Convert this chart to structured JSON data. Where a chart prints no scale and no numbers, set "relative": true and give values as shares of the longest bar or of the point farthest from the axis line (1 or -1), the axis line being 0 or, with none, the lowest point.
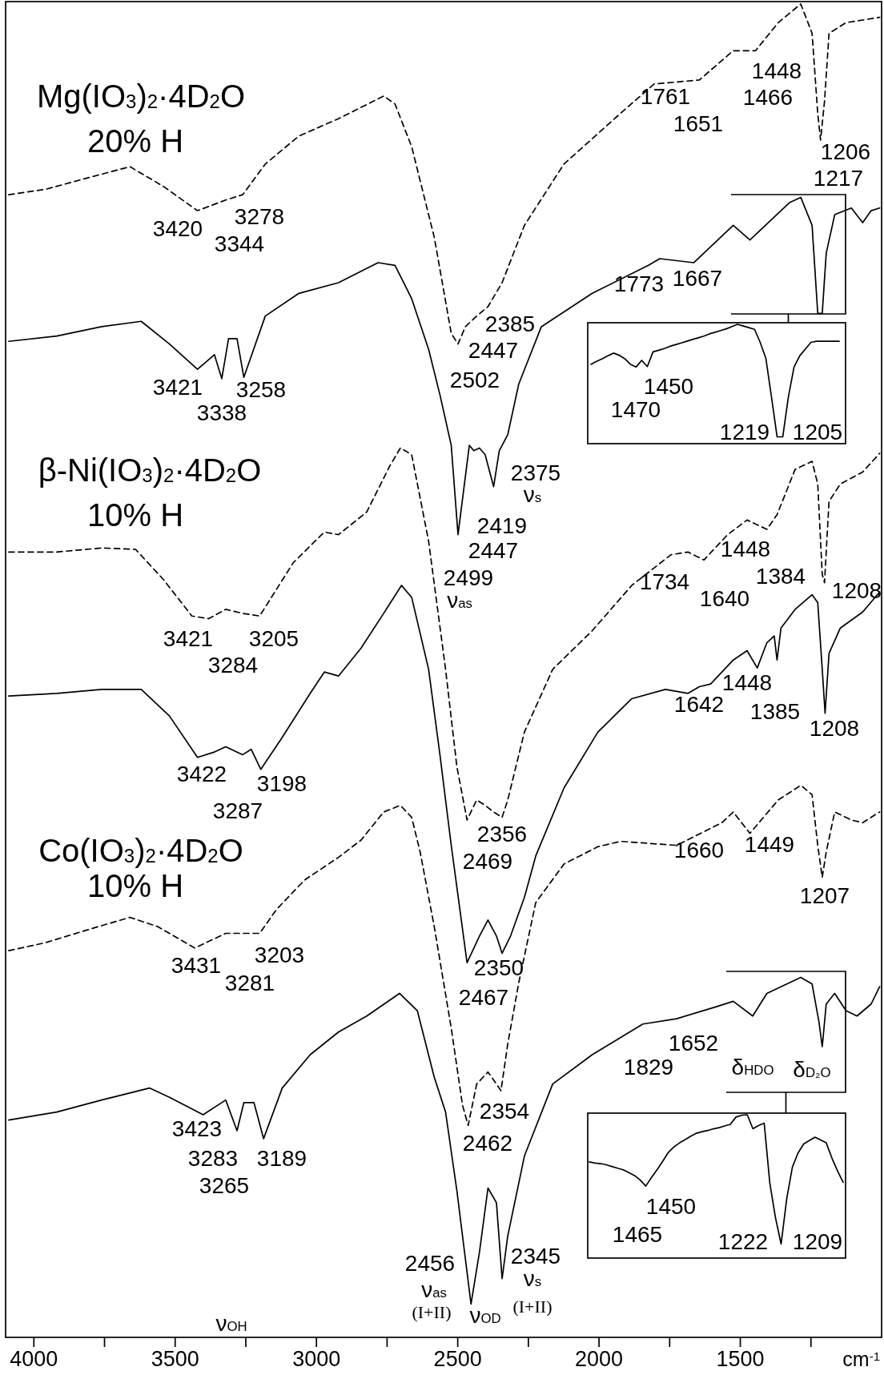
{
  "chart_data": [
    {
      "type": "line",
      "relative": true,
      "xlim": [
        4100,
        1000
      ],
      "xlabel": "cm$^{-1}$",
      "marker": "none",
      "xticks": [
        4000,
        {
          "value": 3750,
          "label": null
        },
        3500,
        {
          "value": 3250,
          "label": null
        },
        3000,
        {
          "value": 2750,
          "label": null
        },
        2500,
        {
          "value": 2250,
          "label": null
        },
        2000,
        {
          "value": 1750,
          "label": null
        },
        1500,
        {
          "value": 1250,
          "label": null
        }
      ],
      "series": [
        {
          "color": "#000000",
          "line_style": "dashed",
          "x": [
            4089,
            3959,
            3820,
            3660,
            3540,
            3421,
            3321,
            3261,
            3181,
            3062,
            2922,
            2762,
            2722,
            2663,
            2583,
            2523,
            2499,
            2473,
            2433,
            2393,
            2343,
            2264,
            2124,
            1924,
            1805,
            1645,
            1525,
            1446,
            1366,
            1286,
            1246,
            1226,
            1216,
            1202,
            1186,
            1126,
            1007
          ],
          "values": [
            0.857,
            0.861,
            0.869,
            0.878,
            0.863,
            0.845,
            0.853,
            0.857,
            0.88,
            0.901,
            0.914,
            0.931,
            0.925,
            0.893,
            0.825,
            0.753,
            0.745,
            0.758,
            0.766,
            0.773,
            0.791,
            0.834,
            0.88,
            0.918,
            0.94,
            0.943,
            0.965,
            0.965,
            0.986,
            1,
            0.978,
            0.918,
            0.898,
            0.927,
            0.978,
            0.986,
            0.99
          ]
        },
        {
          "color": "#000000",
          "line_style": "solid",
          "x": [
            4089,
            3919,
            3760,
            3620,
            3520,
            3421,
            3361,
            3335,
            3311,
            3281,
            3257,
            3181,
            3062,
            2922,
            2782,
            2722,
            2663,
            2603,
            2563,
            2523,
            2499,
            2459,
            2443,
            2423,
            2403,
            2373,
            2353,
            2323,
            2284,
            2204,
            2024,
            1825,
            1785,
            1665,
            1525,
            1466,
            1326,
            1286,
            1246,
            1226,
            1210,
            1196,
            1166,
            1107,
            1067,
            1037,
            1007
          ],
          "values": [
            0.747,
            0.751,
            0.758,
            0.762,
            0.745,
            0.726,
            0.737,
            0.719,
            0.749,
            0.749,
            0.72,
            0.766,
            0.783,
            0.791,
            0.806,
            0.804,
            0.779,
            0.741,
            0.707,
            0.669,
            0.602,
            0.669,
            0.665,
            0.667,
            0.662,
            0.638,
            0.665,
            0.677,
            0.715,
            0.758,
            0.783,
            0.804,
            0.809,
            0.806,
            0.834,
            0.823,
            0.851,
            0.855,
            0.834,
            0.768,
            0.768,
            0.813,
            0.842,
            0.847,
            0.836,
            0.845,
            0.847
          ]
        },
        {
          "color": "#000000",
          "line_style": "dashed",
          "x": [
            4089,
            3919,
            3760,
            3640,
            3540,
            3441,
            3381,
            3321,
            3261,
            3201,
            3082,
            2972,
            2922,
            2822,
            2742,
            2703,
            2663,
            2603,
            2543,
            2503,
            2467,
            2433,
            2403,
            2373,
            2343,
            2323,
            2264,
            2164,
            2024,
            1884,
            1745,
            1685,
            1629,
            1545,
            1476,
            1406,
            1370,
            1306,
            1246,
            1226,
            1210,
            1202,
            1186,
            1146,
            1067,
            1007
          ],
          "values": [
            0.589,
            0.589,
            0.592,
            0.591,
            0.568,
            0.541,
            0.539,
            0.546,
            0.543,
            0.541,
            0.581,
            0.604,
            0.602,
            0.619,
            0.653,
            0.667,
            0.662,
            0.597,
            0.501,
            0.428,
            0.388,
            0.403,
            0.399,
            0.394,
            0.39,
            0.403,
            0.454,
            0.501,
            0.53,
            0.564,
            0.587,
            0.589,
            0.583,
            0.602,
            0.613,
            0.606,
            0.617,
            0.651,
            0.657,
            0.64,
            0.572,
            0.566,
            0.627,
            0.64,
            0.649,
            0.663
          ]
        },
        {
          "color": "#000000",
          "line_style": "solid",
          "x": [
            4089,
            3919,
            3760,
            3620,
            3520,
            3421,
            3361,
            3321,
            3261,
            3231,
            3197,
            3121,
            3022,
            2972,
            2922,
            2842,
            2762,
            2699,
            2663,
            2603,
            2563,
            2523,
            2467,
            2423,
            2393,
            2363,
            2343,
            2313,
            2264,
            2224,
            2124,
            2004,
            1884,
            1765,
            1685,
            1645,
            1605,
            1525,
            1476,
            1440,
            1406,
            1380,
            1370,
            1356,
            1306,
            1246,
            1226,
            1210,
            1200,
            1186,
            1146,
            1067,
            1007
          ],
          "values": [
            0.481,
            0.483,
            0.486,
            0.486,
            0.466,
            0.435,
            0.439,
            0.443,
            0.437,
            0.441,
            0.426,
            0.45,
            0.483,
            0.499,
            0.496,
            0.517,
            0.543,
            0.564,
            0.555,
            0.501,
            0.437,
            0.369,
            0.281,
            0.301,
            0.313,
            0.301,
            0.288,
            0.301,
            0.33,
            0.361,
            0.412,
            0.454,
            0.479,
            0.486,
            0.483,
            0.488,
            0.49,
            0.508,
            0.515,
            0.502,
            0.521,
            0.526,
            0.508,
            0.532,
            0.546,
            0.557,
            0.551,
            0.501,
            0.468,
            0.513,
            0.532,
            0.544,
            0.559
          ]
        },
        {
          "color": "#000000",
          "line_style": "dashed",
          "x": [
            4089,
            3959,
            3820,
            3660,
            3561,
            3431,
            3321,
            3201,
            3141,
            3042,
            2922,
            2842,
            2762,
            2703,
            2663,
            2633,
            2583,
            2523,
            2483,
            2463,
            2433,
            2393,
            2363,
            2347,
            2323,
            2284,
            2224,
            2124,
            2004,
            1924,
            1725,
            1565,
            1525,
            1466,
            1366,
            1286,
            1246,
            1226,
            1210,
            1196,
            1166,
            1107,
            1067,
            1007
          ],
          "values": [
            0.29,
            0.296,
            0.305,
            0.315,
            0.308,
            0.292,
            0.303,
            0.303,
            0.321,
            0.343,
            0.36,
            0.373,
            0.394,
            0.399,
            0.39,
            0.364,
            0.308,
            0.232,
            0.174,
            0.159,
            0.19,
            0.199,
            0.19,
            0.185,
            0.22,
            0.266,
            0.326,
            0.355,
            0.368,
            0.372,
            0.369,
            0.386,
            0.394,
            0.378,
            0.403,
            0.414,
            0.407,
            0.369,
            0.345,
            0.364,
            0.394,
            0.388,
            0.386,
            0.394
          ]
        },
        {
          "color": "#000000",
          "line_style": "solid",
          "x": [
            4089,
            3919,
            3760,
            3590,
            3520,
            3401,
            3321,
            3281,
            3257,
            3221,
            3187,
            3121,
            3022,
            2922,
            2822,
            2706,
            2643,
            2583,
            2543,
            2503,
            2453,
            2423,
            2393,
            2363,
            2343,
            2323,
            2264,
            2164,
            2024,
            1845,
            1725,
            1585,
            1525,
            1456,
            1406,
            1286,
            1246,
            1222,
            1210,
            1196,
            1166,
            1126,
            1087,
            1037,
            1007
          ],
          "values": [
            0.163,
            0.169,
            0.178,
            0.187,
            0.18,
            0.167,
            0.178,
            0.155,
            0.176,
            0.176,
            0.149,
            0.187,
            0.212,
            0.229,
            0.241,
            0.258,
            0.245,
            0.195,
            0.169,
            0.11,
            0.025,
            0.064,
            0.112,
            0.101,
            0.044,
            0.076,
            0.136,
            0.19,
            0.212,
            0.235,
            0.239,
            0.248,
            0.252,
            0.241,
            0.258,
            0.27,
            0.265,
            0.237,
            0.218,
            0.25,
            0.258,
            0.245,
            0.241,
            0.25,
            0.263
          ]
        }
      ],
      "annotations": [
        "Mg(IO$_{3}$)$_{2}$·4D$_{2}$O",
        "20% H",
        "β-Ni(IO$_{3}$)$_{2}$·4D$_{2}$O",
        "10% H",
        "Co(IO$_{3}$)$_{2}$·4D$_{2}$O",
        "10% H",
        "3420",
        "3344",
        "3278",
        "1761",
        "1651",
        "1448",
        "1466",
        "1206",
        "1217",
        "1773",
        "1667",
        "2385",
        "2447",
        "2502",
        "3421",
        "3338",
        "3258",
        "2375",
        "ν$_{s}$",
        "2419",
        "2447",
        "2499",
        "ν$_{as}$",
        "1734",
        "1640",
        "1448",
        "1384",
        "1208",
        "3421",
        "3284",
        "3205",
        "1642",
        "1448",
        "1385",
        "1208",
        "3422",
        "3287",
        "3198",
        "2356",
        "2469",
        "1660",
        "1449",
        "1207",
        "3431",
        "3281",
        "3203",
        "2350",
        "2467",
        "1829",
        "1652",
        "δ$_{HDO}$",
        "δ$_{D₂O}$",
        "2354",
        "2462",
        "3423",
        "3283",
        "3189",
        "3265",
        "2456",
        "ν$_{as}$",
        "(I+II)",
        "ν$_{OD}$",
        "2345",
        "ν$_{s}$",
        "(I+II)",
        "ν$_{OH}$"
      ]
    },
    {
      "type": "line",
      "relative": true,
      "categories": [
        null,
        null,
        null,
        null,
        null,
        null,
        null,
        null,
        null,
        null,
        null,
        null,
        null,
        null,
        null,
        null,
        null,
        null,
        null,
        null,
        null,
        null,
        null,
        null,
        null,
        null,
        null,
        null,
        null,
        null,
        null,
        null,
        null,
        null,
        null,
        null,
        null,
        null,
        null,
        null,
        null,
        null,
        null,
        null,
        null
      ],
      "series": [
        {
          "color": "#000000",
          "line_style": "solid",
          "values": [
            0.665,
            0.689,
            0.712,
            0.736,
            0.759,
            0.741,
            0.712,
            0.665,
            0.642,
            0.698,
            0.646,
            0.769,
            0.783,
            0.797,
            0.816,
            0.83,
            0.844,
            0.858,
            0.873,
            0.887,
            0.901,
            0.92,
            0.934,
            0.948,
            0.962,
            0.981,
            1,
            0.986,
            0.972,
            0.958,
            0.849,
            0.717,
            0.392,
            0.057,
            0.057,
            0.392,
            0.642,
            0.736,
            0.792,
            0.849,
            0.858,
            0.858,
            0.858,
            0.858,
            0.858
          ]
        }
      ],
      "annotations": [
        "1450",
        "1470",
        "1219",
        "1205"
      ]
    },
    {
      "type": "line",
      "relative": true,
      "categories": [
        null,
        null,
        null,
        null,
        null,
        null,
        null,
        null,
        null,
        null,
        null,
        null,
        null,
        null,
        null,
        null,
        null,
        null,
        null,
        null,
        null,
        null,
        null,
        null,
        null,
        null,
        null,
        null,
        null,
        null,
        null,
        null,
        null,
        null,
        null,
        null,
        null,
        null,
        null,
        null,
        null,
        null,
        null,
        null,
        null,
        null
      ],
      "series": [
        {
          "color": "#000000",
          "line_style": "solid",
          "values": [
            0.671,
            0.663,
            0.659,
            0.651,
            0.639,
            0.627,
            0.616,
            0.596,
            0.576,
            0.545,
            0.502,
            0.561,
            0.616,
            0.675,
            0.737,
            0.776,
            0.804,
            0.827,
            0.851,
            0.871,
            0.882,
            0.89,
            0.902,
            0.91,
            0.922,
            0.933,
            0.984,
            0.996,
            1,
            0.902,
            0.925,
            0.941,
            0.522,
            0.282,
            0.098,
            0.416,
            0.635,
            0.733,
            0.796,
            0.82,
            0.843,
            0.824,
            0.804,
            0.698,
            0.608,
            0.529
          ]
        }
      ],
      "annotations": [
        "1450",
        "1465",
        "1222",
        "1209"
      ]
    }
  ]
}
